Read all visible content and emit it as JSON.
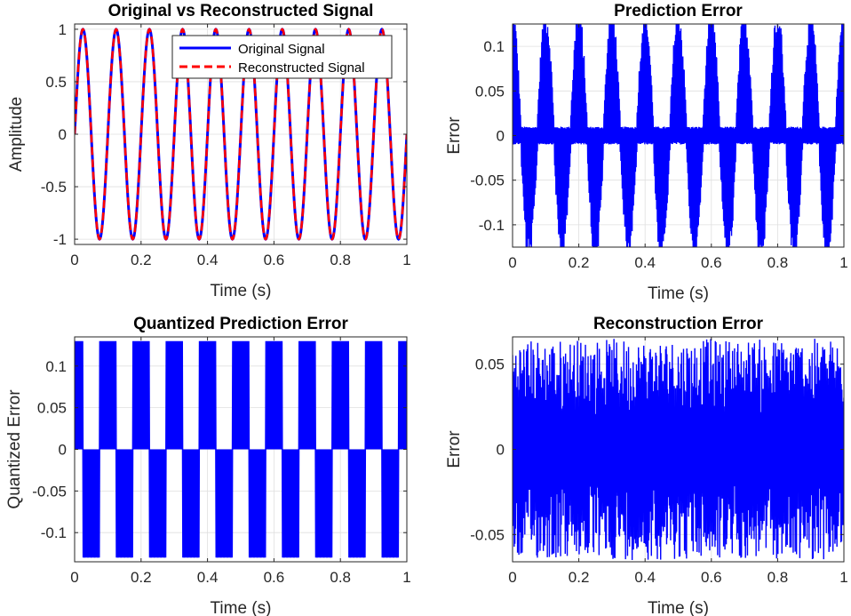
{
  "figure": {
    "background": "#ffffff",
    "line_color": "#0000ff",
    "red_dashed_color": "#ff0000"
  },
  "chart_data": [
    {
      "id": "p1",
      "type": "line",
      "title": "Original vs Reconstructed Signal",
      "xlabel": "Time (s)",
      "ylabel": "Amplitude",
      "xlim": [
        0,
        1
      ],
      "ylim": [
        -1.05,
        1.05
      ],
      "xticks": [
        0,
        0.2,
        0.4,
        0.6,
        0.8,
        1
      ],
      "xtick_labels": [
        "0",
        "0.2",
        "0.4",
        "0.6",
        "0.8",
        "1"
      ],
      "yticks": [
        -1,
        -0.5,
        0,
        0.5,
        1
      ],
      "ytick_labels": [
        "-1",
        "-0.5",
        "0",
        "0.5",
        "1"
      ],
      "grid": true,
      "legend": "top-right",
      "series": [
        {
          "name": "Original Signal",
          "color": "#0000ff",
          "style": "solid",
          "formula": "sin(2*pi*10*t)",
          "frequency_hz": 10,
          "amplitude": 1
        },
        {
          "name": "Reconstructed Signal",
          "color": "#ff0000",
          "style": "dashed",
          "formula": "sin(2*pi*10*t)",
          "frequency_hz": 10,
          "amplitude": 1
        }
      ]
    },
    {
      "id": "p2",
      "type": "line",
      "title": "Prediction Error",
      "xlabel": "Time (s)",
      "ylabel": "Error",
      "xlim": [
        0,
        1
      ],
      "ylim": [
        -0.125,
        0.125
      ],
      "xticks": [
        0,
        0.2,
        0.4,
        0.6,
        0.8,
        1
      ],
      "xtick_labels": [
        "0",
        "0.2",
        "0.4",
        "0.6",
        "0.8",
        "1"
      ],
      "yticks": [
        -0.1,
        -0.05,
        0,
        0.05,
        0.1
      ],
      "ytick_labels": [
        "-0.1",
        "-0.05",
        "0",
        "0.05",
        "0.1"
      ],
      "grid": true,
      "series": [
        {
          "color": "#0000ff",
          "pattern": "oscillating error envelope following cos(2*pi*10*t)",
          "peak": 0.13,
          "baseline_band": 0.02,
          "frequency_hz": 10
        }
      ]
    },
    {
      "id": "p3",
      "type": "line",
      "title": "Quantized Prediction Error",
      "xlabel": "Time (s)",
      "ylabel": "Quantized Error",
      "xlim": [
        0,
        1
      ],
      "ylim": [
        -0.135,
        0.135
      ],
      "xticks": [
        0,
        0.2,
        0.4,
        0.6,
        0.8,
        1
      ],
      "xtick_labels": [
        "0",
        "0.2",
        "0.4",
        "0.6",
        "0.8",
        "1"
      ],
      "yticks": [
        -0.1,
        -0.05,
        0,
        0.05,
        0.1
      ],
      "ytick_labels": [
        "-0.1",
        "-0.05",
        "0",
        "0.05",
        "0.1"
      ],
      "grid": true,
      "series": [
        {
          "color": "#0000ff",
          "levels": [
            -0.13,
            0,
            0.13
          ],
          "pattern": "alternating blocks of +/-0.13, sign follows cos(2*pi*10*t)",
          "frequency_hz": 10
        }
      ]
    },
    {
      "id": "p4",
      "type": "line",
      "title": "Reconstruction Error",
      "xlabel": "Time (s)",
      "ylabel": "Error",
      "xlim": [
        0,
        1
      ],
      "ylim": [
        -0.066,
        0.066
      ],
      "xticks": [
        0,
        0.2,
        0.4,
        0.6,
        0.8,
        1
      ],
      "xtick_labels": [
        "0",
        "0.2",
        "0.4",
        "0.6",
        "0.8",
        "1"
      ],
      "yticks": [
        -0.05,
        0,
        0.05
      ],
      "ytick_labels": [
        "-0.05",
        "0",
        "0.05"
      ],
      "grid": true,
      "series": [
        {
          "color": "#0000ff",
          "pattern": "dense noise-like error",
          "range": [
            -0.065,
            0.065
          ]
        }
      ]
    }
  ]
}
